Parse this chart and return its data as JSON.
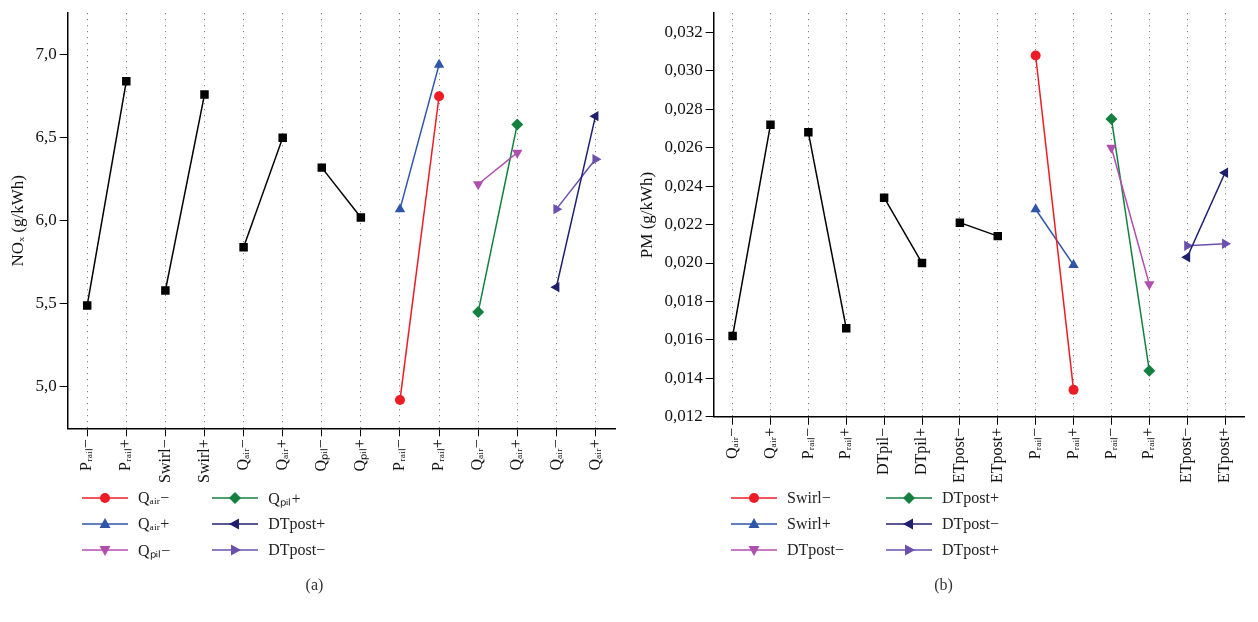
{
  "chart_data": [
    {
      "type": "line",
      "ylabel": "NOₓ (g/kWh)",
      "annotations": [
        "(a)"
      ],
      "grid": "x",
      "legend": "bottom",
      "categories": [
        "Pᵣₐᵢₗ−",
        "Pᵣₐᵢₗ+",
        "Swirl−",
        "Swirl+",
        "Qₐᵢᵣ−",
        "Qₐᵢᵣ+",
        "Qₚᵢₗ−",
        "Qₚᵢₗ+",
        "Pᵣₐᵢₗ−",
        "Pᵣₐᵢₗ+",
        "Qₐᵢᵣ−",
        "Qₐᵢᵣ+",
        "Qₐᵢᵣ−",
        "Qₐᵢᵣ+"
      ],
      "ylim": [
        4.75,
        7.25
      ],
      "yticks": [
        {
          "value": 5,
          "label": "5,0"
        },
        {
          "value": 5.5,
          "label": "5,5"
        },
        {
          "value": 6,
          "label": "6,0"
        },
        {
          "value": 6.5,
          "label": "6,5"
        },
        {
          "value": 7,
          "label": "7,0"
        }
      ],
      "series": [
        {
          "color": "#000000",
          "marker": "square",
          "values": [
            5.49,
            6.84,
            null,
            null,
            null,
            null,
            null,
            null,
            null,
            null,
            null,
            null,
            null,
            null
          ]
        },
        {
          "color": "#000000",
          "marker": "square",
          "values": [
            null,
            null,
            5.58,
            6.76,
            null,
            null,
            null,
            null,
            null,
            null,
            null,
            null,
            null,
            null
          ]
        },
        {
          "color": "#000000",
          "marker": "square",
          "values": [
            null,
            null,
            null,
            null,
            5.84,
            6.5,
            null,
            null,
            null,
            null,
            null,
            null,
            null,
            null
          ]
        },
        {
          "color": "#000000",
          "marker": "square",
          "values": [
            null,
            null,
            null,
            null,
            null,
            null,
            6.32,
            6.02,
            null,
            null,
            null,
            null,
            null,
            null
          ]
        },
        {
          "name": "Qₐᵢᵣ−",
          "color": "#ee1c25",
          "marker": "circle",
          "values": [
            null,
            null,
            null,
            null,
            null,
            null,
            null,
            null,
            4.92,
            6.75,
            null,
            null,
            null,
            null
          ]
        },
        {
          "name": "Qₐᵢᵣ+",
          "color": "#2f55a8",
          "marker": "triangle",
          "values": [
            null,
            null,
            null,
            null,
            null,
            null,
            null,
            null,
            6.07,
            6.94,
            null,
            null,
            null,
            null
          ]
        },
        {
          "name": "Qₚᵢₗ−",
          "color": "#b04fae",
          "marker": "triangle-down",
          "values": [
            null,
            null,
            null,
            null,
            null,
            null,
            null,
            null,
            null,
            null,
            6.22,
            6.41,
            null,
            null
          ]
        },
        {
          "name": "Qₚᵢₗ+",
          "color": "#148040",
          "marker": "diamond",
          "values": [
            null,
            null,
            null,
            null,
            null,
            null,
            null,
            null,
            null,
            null,
            5.45,
            6.58,
            null,
            null
          ]
        },
        {
          "name": "DTpost+",
          "color": "#1f1f6e",
          "marker": "triangle-left",
          "values": [
            null,
            null,
            null,
            null,
            null,
            null,
            null,
            null,
            null,
            null,
            null,
            null,
            5.6,
            6.63
          ]
        },
        {
          "name": "DTpost−",
          "color": "#6b50ad",
          "marker": "triangle-right",
          "values": [
            null,
            null,
            null,
            null,
            null,
            null,
            null,
            null,
            null,
            null,
            null,
            null,
            6.07,
            6.37
          ]
        }
      ]
    },
    {
      "type": "line",
      "ylabel": "PM (g/kWh)",
      "annotations": [
        "(b)"
      ],
      "grid": "x",
      "legend": "bottom",
      "categories": [
        "Qₐᵢᵣ−",
        "Qₐᵢᵣ+",
        "Pᵣₐᵢₗ−",
        "Pᵣₐᵢₗ+",
        "DTpil−",
        "DTpil+",
        "ETpost−",
        "ETpost+",
        "Pᵣₐᵢₗ−",
        "Pᵣₐᵢₗ+",
        "Pᵣₐᵢₗ−",
        "Pᵣₐᵢₗ+",
        "ETpost−",
        "ETpost+"
      ],
      "ylim": [
        0.012,
        0.033
      ],
      "yticks": [
        {
          "value": 0.012,
          "label": "0,012"
        },
        {
          "value": 0.014,
          "label": "0,014"
        },
        {
          "value": 0.016,
          "label": "0,016"
        },
        {
          "value": 0.018,
          "label": "0,018"
        },
        {
          "value": 0.02,
          "label": "0,020"
        },
        {
          "value": 0.022,
          "label": "0,022"
        },
        {
          "value": 0.024,
          "label": "0,024"
        },
        {
          "value": 0.026,
          "label": "0,026"
        },
        {
          "value": 0.028,
          "label": "0,028"
        },
        {
          "value": 0.03,
          "label": "0,030"
        },
        {
          "value": 0.032,
          "label": "0,032"
        }
      ],
      "series": [
        {
          "color": "#000000",
          "marker": "square",
          "values": [
            0.0162,
            0.0272,
            null,
            null,
            null,
            null,
            null,
            null,
            null,
            null,
            null,
            null,
            null,
            null
          ]
        },
        {
          "color": "#000000",
          "marker": "square",
          "values": [
            null,
            null,
            0.0268,
            0.0166,
            null,
            null,
            null,
            null,
            null,
            null,
            null,
            null,
            null,
            null
          ]
        },
        {
          "color": "#000000",
          "marker": "square",
          "values": [
            null,
            null,
            null,
            null,
            0.0234,
            0.02,
            null,
            null,
            null,
            null,
            null,
            null,
            null,
            null
          ]
        },
        {
          "color": "#000000",
          "marker": "square",
          "values": [
            null,
            null,
            null,
            null,
            null,
            null,
            0.0221,
            0.0214,
            null,
            null,
            null,
            null,
            null,
            null
          ]
        },
        {
          "name": "Swirl−",
          "color": "#ee1c25",
          "marker": "circle",
          "values": [
            null,
            null,
            null,
            null,
            null,
            null,
            null,
            null,
            0.0308,
            0.0134,
            null,
            null,
            null,
            null
          ]
        },
        {
          "name": "Swirl+",
          "color": "#2f55a8",
          "marker": "triangle",
          "values": [
            null,
            null,
            null,
            null,
            null,
            null,
            null,
            null,
            0.0228,
            0.0199,
            null,
            null,
            null,
            null
          ]
        },
        {
          "name": "DTpost−",
          "color": "#b04fae",
          "marker": "triangle-down",
          "values": [
            null,
            null,
            null,
            null,
            null,
            null,
            null,
            null,
            null,
            null,
            0.026,
            0.0189,
            null,
            null
          ]
        },
        {
          "name": "DTpost+",
          "color": "#148040",
          "marker": "diamond",
          "values": [
            null,
            null,
            null,
            null,
            null,
            null,
            null,
            null,
            null,
            null,
            0.0275,
            0.0144,
            null,
            null
          ]
        },
        {
          "name": "DTpost−",
          "color": "#1f1f6e",
          "marker": "triangle-left",
          "values": [
            null,
            null,
            null,
            null,
            null,
            null,
            null,
            null,
            null,
            null,
            null,
            null,
            0.0203,
            0.0247
          ]
        },
        {
          "name": "DTpost+",
          "color": "#6b50ad",
          "marker": "triangle-right",
          "values": [
            null,
            null,
            null,
            null,
            null,
            null,
            null,
            null,
            null,
            null,
            null,
            null,
            0.0209,
            0.021
          ]
        }
      ]
    }
  ]
}
